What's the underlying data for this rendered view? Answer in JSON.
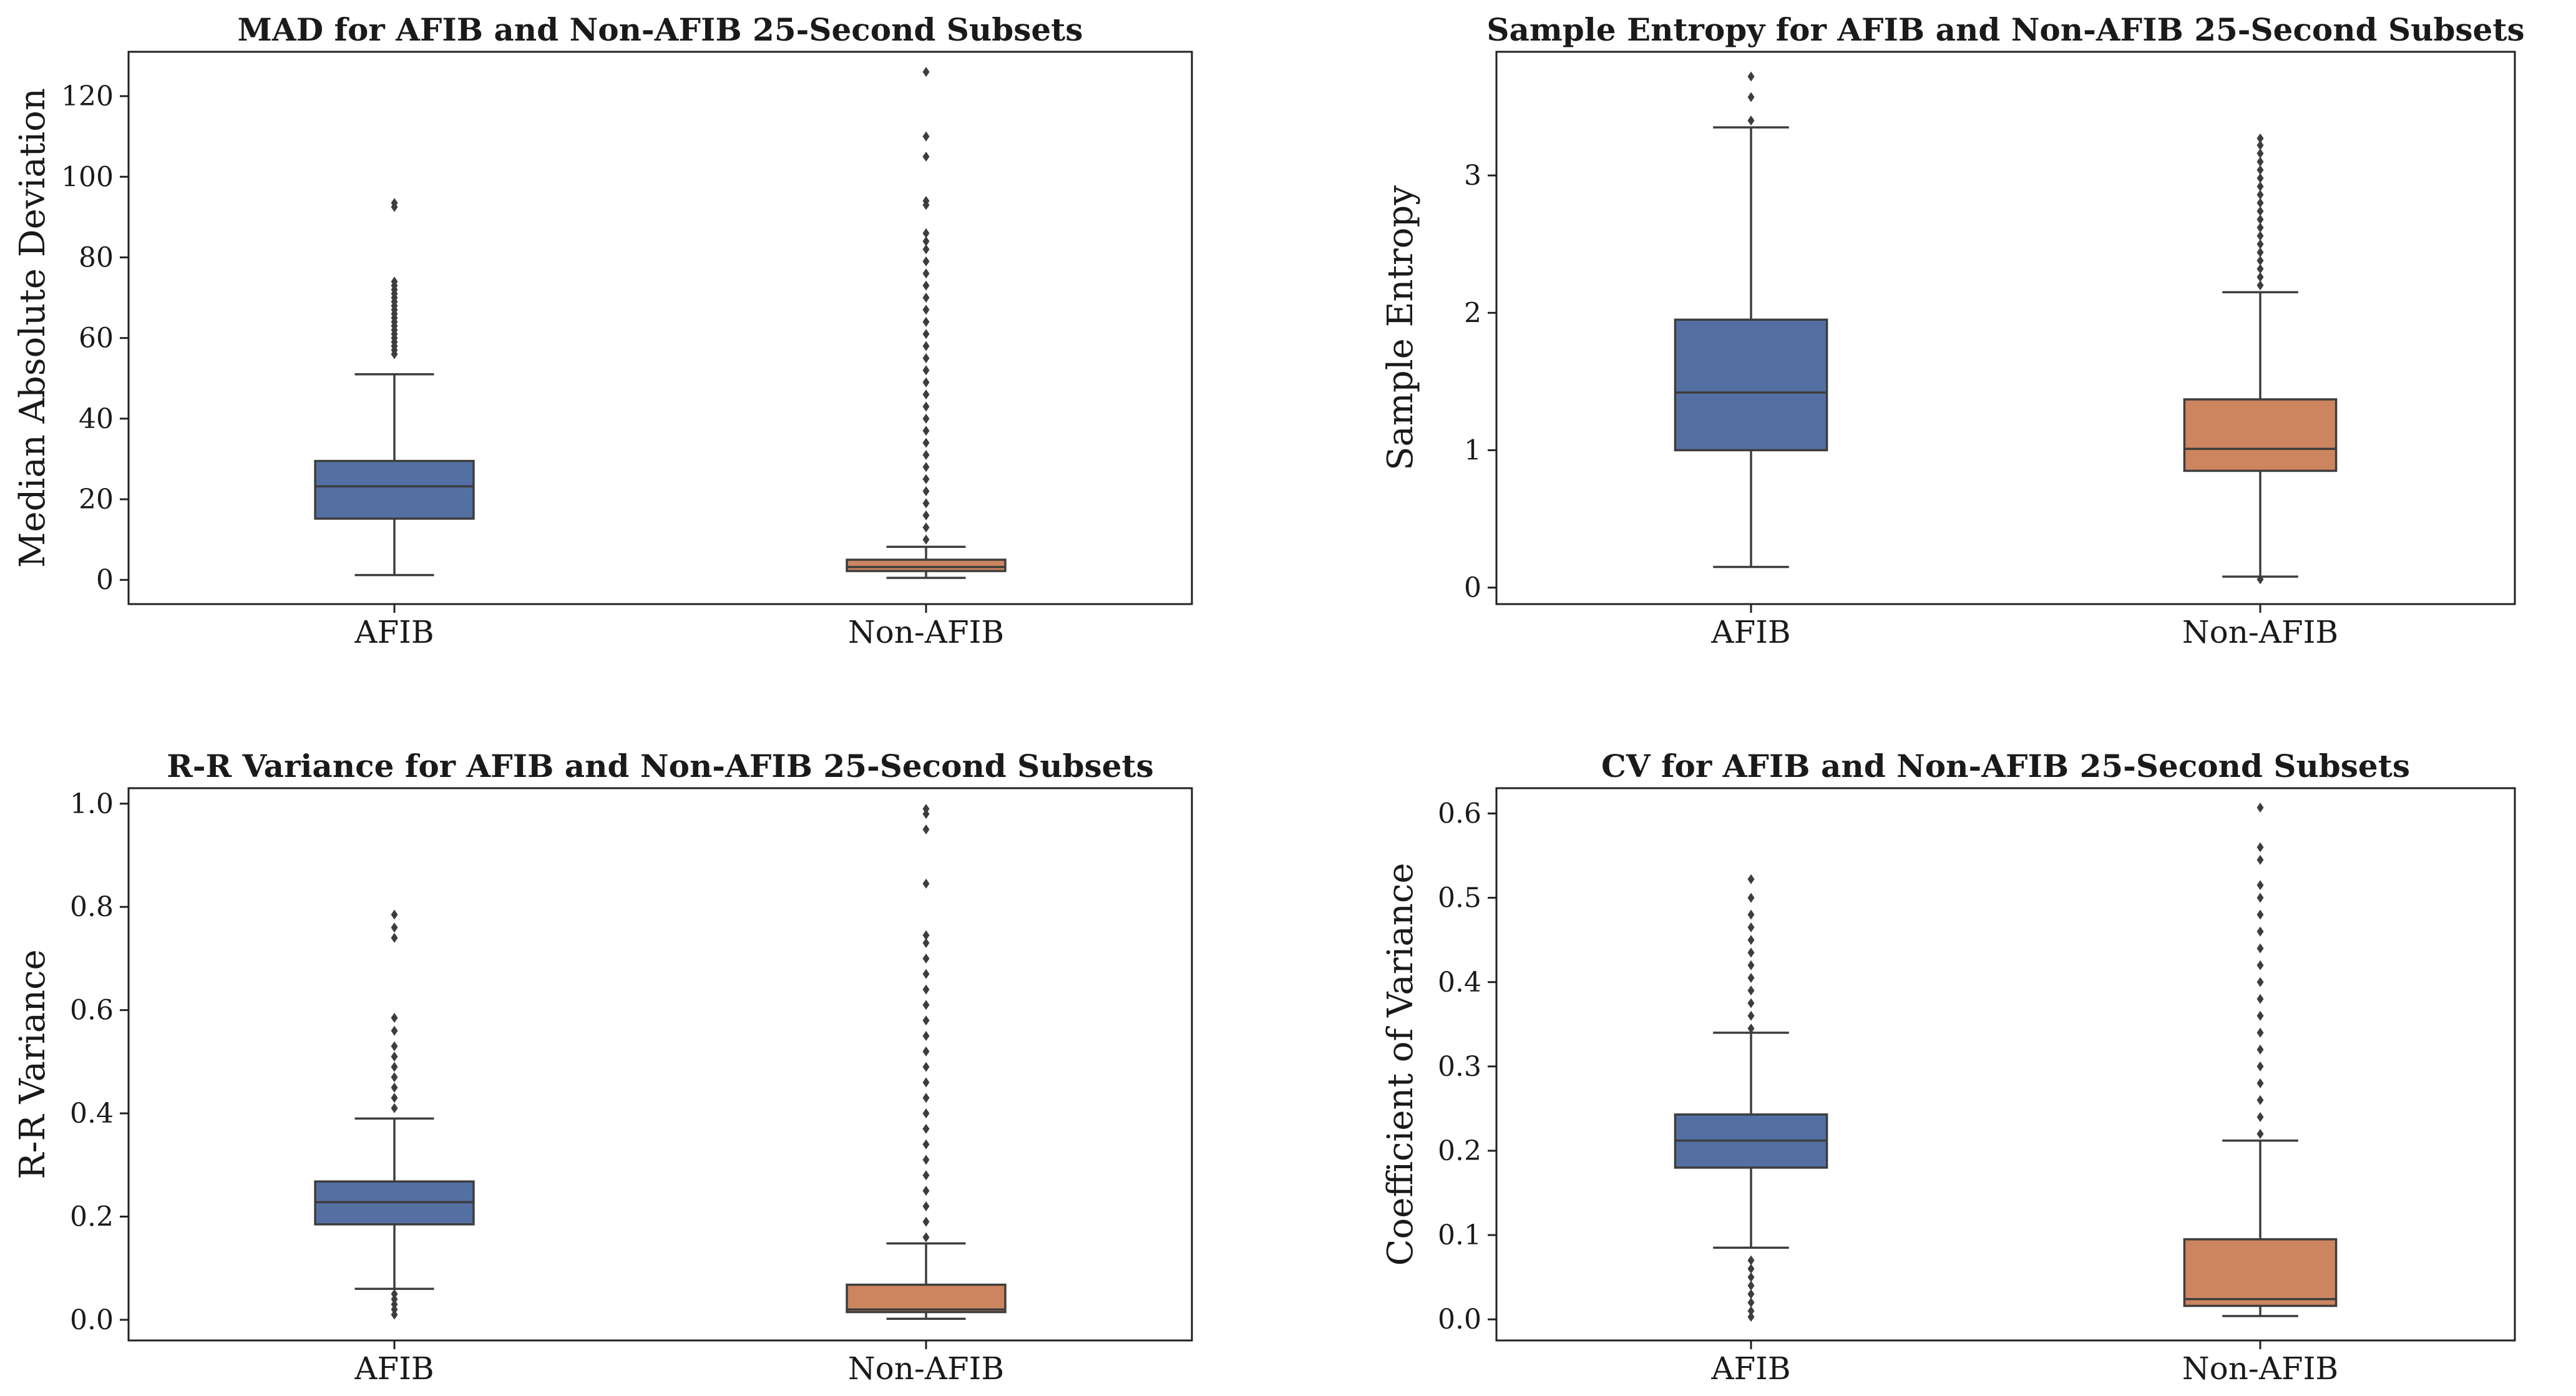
{
  "chart_data": [
    {
      "type": "box",
      "title": "MAD for AFIB and Non-AFIB 25-Second Subsets",
      "xlabel": "",
      "ylabel": "Median Absolute Deviation",
      "categories": [
        "AFIB",
        "Non-AFIB"
      ],
      "ylim": [
        -6,
        131
      ],
      "yticks": [
        0,
        20,
        40,
        60,
        80,
        100,
        120
      ],
      "ytick_labels": [
        "0",
        "20",
        "40",
        "60",
        "80",
        "100",
        "120"
      ],
      "grid": false,
      "box_colors": [
        "#5470a3",
        "#cd8560"
      ],
      "boxes": [
        {
          "category": "AFIB",
          "whisker_low": 1.2,
          "q1": 15.2,
          "median": 23.2,
          "q3": 29.5,
          "whisker_high": 51.0,
          "outliers": [
            56,
            57,
            58,
            59,
            60,
            61,
            62,
            63,
            64,
            65,
            66,
            67,
            68,
            69,
            70,
            71,
            72,
            73,
            74,
            92.5,
            93.5
          ]
        },
        {
          "category": "Non-AFIB",
          "whisker_low": 0.5,
          "q1": 2.2,
          "median": 3.2,
          "q3": 5.0,
          "whisker_high": 8.2,
          "outliers": [
            10,
            13,
            16,
            19,
            22,
            25,
            28,
            31,
            34,
            37,
            40,
            43,
            46,
            49,
            52,
            55,
            58,
            61,
            64,
            67,
            70,
            73,
            76,
            79,
            82,
            84,
            86,
            93,
            94,
            105,
            110,
            126
          ]
        }
      ]
    },
    {
      "type": "box",
      "title": "Sample Entropy for AFIB and Non-AFIB 25-Second Subsets",
      "xlabel": "",
      "ylabel": "Sample Entropy",
      "categories": [
        "AFIB",
        "Non-AFIB"
      ],
      "ylim": [
        -0.12,
        3.9
      ],
      "yticks": [
        0,
        1,
        2,
        3
      ],
      "ytick_labels": [
        "0",
        "1",
        "2",
        "3"
      ],
      "grid": false,
      "box_colors": [
        "#5470a3",
        "#cd8560"
      ],
      "boxes": [
        {
          "category": "AFIB",
          "whisker_low": 0.15,
          "q1": 1.0,
          "median": 1.42,
          "q3": 1.95,
          "whisker_high": 3.35,
          "outliers": [
            3.4,
            3.57,
            3.72
          ]
        },
        {
          "category": "Non-AFIB",
          "whisker_low": 0.08,
          "q1": 0.85,
          "median": 1.01,
          "q3": 1.37,
          "whisker_high": 2.15,
          "outliers": [
            0.06,
            2.2,
            2.26,
            2.32,
            2.38,
            2.44,
            2.5,
            2.56,
            2.62,
            2.68,
            2.74,
            2.8,
            2.86,
            2.92,
            2.98,
            3.04,
            3.1,
            3.16,
            3.22,
            3.27
          ]
        }
      ]
    },
    {
      "type": "box",
      "title": "R-R Variance for AFIB and Non-AFIB 25-Second Subsets",
      "xlabel": "",
      "ylabel": "R-R Variance",
      "categories": [
        "AFIB",
        "Non-AFIB"
      ],
      "ylim": [
        -0.04,
        1.03
      ],
      "yticks": [
        0.0,
        0.2,
        0.4,
        0.6,
        0.8,
        1.0
      ],
      "ytick_labels": [
        "0.0",
        "0.2",
        "0.4",
        "0.6",
        "0.8",
        "1.0"
      ],
      "grid": false,
      "box_colors": [
        "#5470a3",
        "#cd8560"
      ],
      "boxes": [
        {
          "category": "AFIB",
          "whisker_low": 0.06,
          "q1": 0.185,
          "median": 0.228,
          "q3": 0.268,
          "whisker_high": 0.39,
          "outliers": [
            0.01,
            0.02,
            0.03,
            0.04,
            0.05,
            0.41,
            0.43,
            0.45,
            0.47,
            0.49,
            0.51,
            0.53,
            0.56,
            0.585,
            0.74,
            0.76,
            0.785
          ]
        },
        {
          "category": "Non-AFIB",
          "whisker_low": 0.002,
          "q1": 0.015,
          "median": 0.02,
          "q3": 0.068,
          "whisker_high": 0.148,
          "outliers": [
            0.16,
            0.19,
            0.22,
            0.25,
            0.28,
            0.31,
            0.34,
            0.37,
            0.4,
            0.43,
            0.46,
            0.49,
            0.52,
            0.55,
            0.58,
            0.61,
            0.64,
            0.67,
            0.7,
            0.73,
            0.745,
            0.845,
            0.95,
            0.98,
            0.99
          ]
        }
      ]
    },
    {
      "type": "box",
      "title": "CV for AFIB and Non-AFIB 25-Second Subsets",
      "xlabel": "",
      "ylabel": "Coefficient of Variance",
      "categories": [
        "AFIB",
        "Non-AFIB"
      ],
      "ylim": [
        -0.025,
        0.63
      ],
      "yticks": [
        0.0,
        0.1,
        0.2,
        0.3,
        0.4,
        0.5,
        0.6
      ],
      "ytick_labels": [
        "0.0",
        "0.1",
        "0.2",
        "0.3",
        "0.4",
        "0.5",
        "0.6"
      ],
      "grid": false,
      "box_colors": [
        "#5470a3",
        "#cd8560"
      ],
      "boxes": [
        {
          "category": "AFIB",
          "whisker_low": 0.085,
          "q1": 0.18,
          "median": 0.212,
          "q3": 0.243,
          "whisker_high": 0.34,
          "outliers": [
            0.003,
            0.01,
            0.02,
            0.03,
            0.04,
            0.05,
            0.06,
            0.07,
            0.345,
            0.36,
            0.375,
            0.39,
            0.405,
            0.42,
            0.435,
            0.45,
            0.465,
            0.48,
            0.5,
            0.522
          ]
        },
        {
          "category": "Non-AFIB",
          "whisker_low": 0.004,
          "q1": 0.016,
          "median": 0.024,
          "q3": 0.095,
          "whisker_high": 0.212,
          "outliers": [
            0.22,
            0.24,
            0.26,
            0.28,
            0.3,
            0.32,
            0.34,
            0.36,
            0.38,
            0.4,
            0.42,
            0.44,
            0.46,
            0.48,
            0.5,
            0.515,
            0.545,
            0.56,
            0.607
          ]
        }
      ]
    }
  ]
}
